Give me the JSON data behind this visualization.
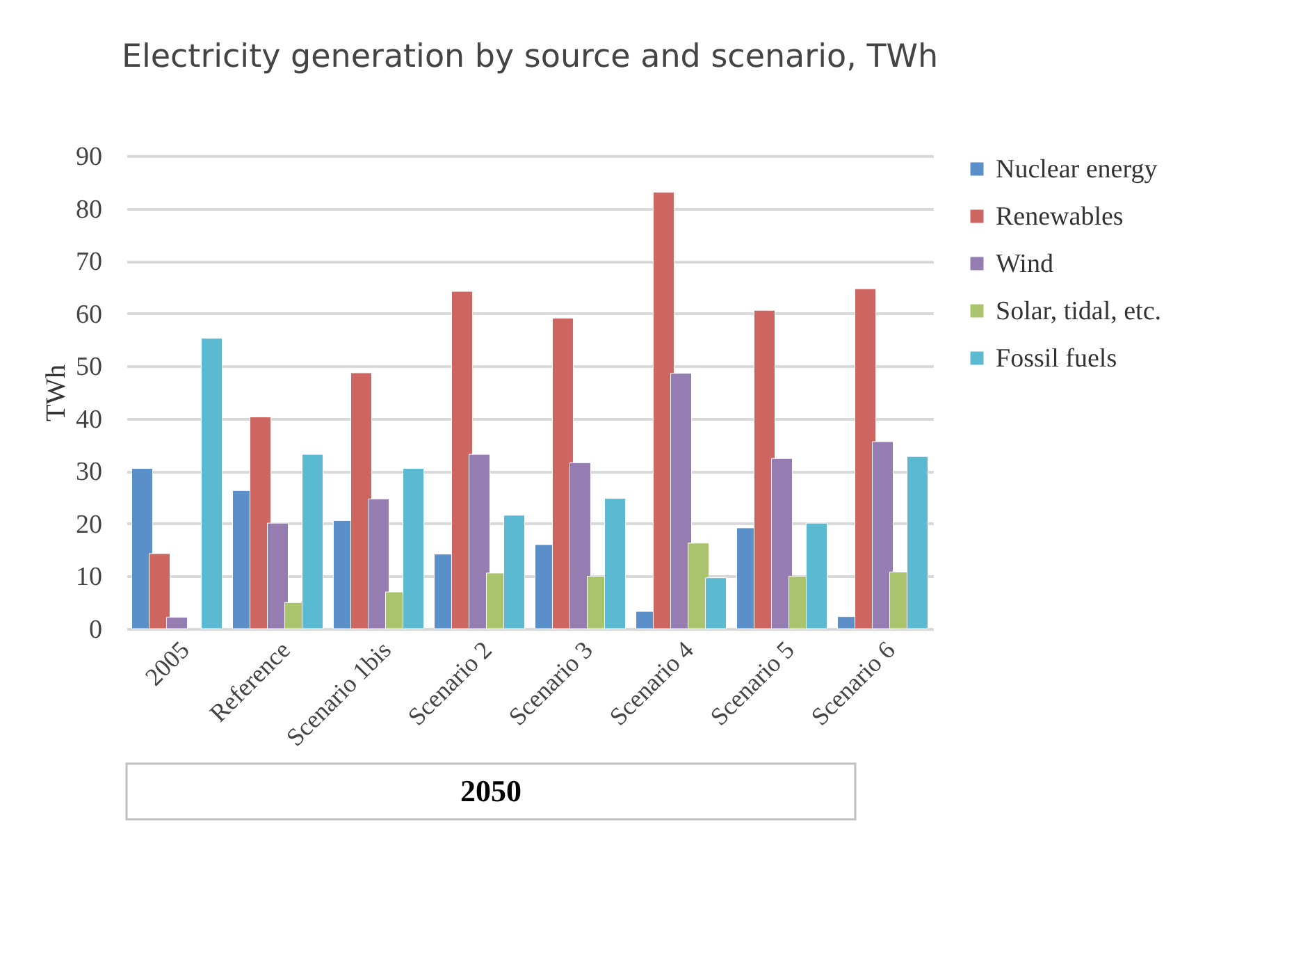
{
  "chart_data": {
    "type": "bar",
    "title": "Electricity generation by source and scenario, TWh",
    "ylabel": "TWh",
    "categories": [
      "2005",
      "Reference",
      "Scenario 1bis",
      "Scenario 2",
      "Scenario 3",
      "Scenario 4",
      "Scenario 5",
      "Scenario 6"
    ],
    "series": [
      {
        "name": "Nuclear energy",
        "color": "#5b8fc9",
        "values": [
          30.5,
          26.3,
          20.6,
          14.2,
          16.0,
          3.3,
          19.2,
          2.3
        ]
      },
      {
        "name": "Renewables",
        "color": "#cd6660",
        "values": [
          14.3,
          40.3,
          48.7,
          64.2,
          59.1,
          83.1,
          60.6,
          64.7
        ]
      },
      {
        "name": "Wind",
        "color": "#957db1",
        "values": [
          2.2,
          20.1,
          24.7,
          33.2,
          31.6,
          48.6,
          32.4,
          35.6
        ]
      },
      {
        "name": "Solar, tidal, etc.",
        "color": "#a9c46c",
        "values": [
          null,
          5.0,
          7.0,
          10.6,
          10.0,
          16.3,
          10.0,
          10.8
        ]
      },
      {
        "name": "Fossil fuels",
        "color": "#5bb9d1",
        "values": [
          55.3,
          33.2,
          30.5,
          21.6,
          24.8,
          9.7,
          20.1,
          32.8
        ]
      }
    ],
    "ylim": [
      0,
      90
    ],
    "yticks": [
      0,
      10,
      20,
      30,
      40,
      50,
      60,
      70,
      80,
      90
    ],
    "grid": "y",
    "legend": "right",
    "annotations": [
      "2050"
    ]
  }
}
